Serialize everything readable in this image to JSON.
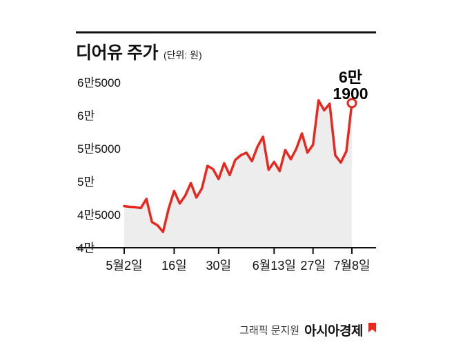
{
  "header": {
    "title": "디어유 주가",
    "unit": "(단위: 원)"
  },
  "annotation": {
    "line1": "6만",
    "line2": "1900"
  },
  "credit": {
    "prefix": "그래픽 문지원",
    "brand": "아시아경제"
  },
  "colors": {
    "line": "#e8281e",
    "area": "#ededed",
    "axis": "#111111",
    "marker_fill": "#ffffff"
  },
  "chart_data": {
    "type": "line",
    "title": "디어유 주가",
    "unit": "원",
    "ylim": [
      40000,
      65000
    ],
    "grid": false,
    "legend": "none",
    "yticks": {
      "values": [
        65000,
        60000,
        55000,
        50000,
        45000,
        40000
      ],
      "labels": [
        "6만5000",
        "6만",
        "5만5000",
        "5만",
        "4만5000",
        "4만"
      ]
    },
    "xticks": [
      {
        "label": "5월2일",
        "index": 0
      },
      {
        "label": "16일",
        "index": 9
      },
      {
        "label": "30일",
        "index": 17
      },
      {
        "label": "6월13일",
        "index": 27
      },
      {
        "label": "27일",
        "index": 34
      },
      {
        "label": "7월8일",
        "index": 41
      }
    ],
    "values": [
      46300,
      46200,
      46150,
      46000,
      47400,
      43900,
      43400,
      42400,
      45900,
      48600,
      46700,
      47900,
      49800,
      47600,
      49000,
      52400,
      51900,
      50400,
      52800,
      51000,
      53300,
      54000,
      54400,
      53100,
      55300,
      56800,
      51800,
      53000,
      51600,
      54800,
      53400,
      55000,
      57300,
      54400,
      55600,
      62300,
      60800,
      61800,
      54000,
      52900,
      54600,
      61900
    ],
    "last_value": 61900,
    "last_value_label": "6만1900"
  }
}
